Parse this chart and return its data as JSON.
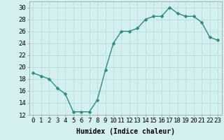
{
  "x": [
    0,
    1,
    2,
    3,
    4,
    5,
    6,
    7,
    8,
    9,
    10,
    11,
    12,
    13,
    14,
    15,
    16,
    17,
    18,
    19,
    20,
    21,
    22,
    23
  ],
  "y": [
    19,
    18.5,
    18,
    16.5,
    15.5,
    12.5,
    12.5,
    12.5,
    14.5,
    19.5,
    24,
    26,
    26,
    26.5,
    28,
    28.5,
    28.5,
    30,
    29,
    28.5,
    28.5,
    27.5,
    25,
    24.5
  ],
  "line_color": "#2d8c7f",
  "marker_color": "#2d8c7f",
  "background_color": "#d4efef",
  "grid_color": "#b8dede",
  "xlabel": "Humidex (Indice chaleur)",
  "xlim": [
    -0.5,
    23.5
  ],
  "ylim": [
    12,
    31
  ],
  "yticks": [
    12,
    14,
    16,
    18,
    20,
    22,
    24,
    26,
    28,
    30
  ],
  "xticks": [
    0,
    1,
    2,
    3,
    4,
    5,
    6,
    7,
    8,
    9,
    10,
    11,
    12,
    13,
    14,
    15,
    16,
    17,
    18,
    19,
    20,
    21,
    22,
    23
  ],
  "xlabel_fontsize": 7.0,
  "tick_fontsize": 6.5,
  "linewidth": 1.0,
  "markersize": 2.5
}
